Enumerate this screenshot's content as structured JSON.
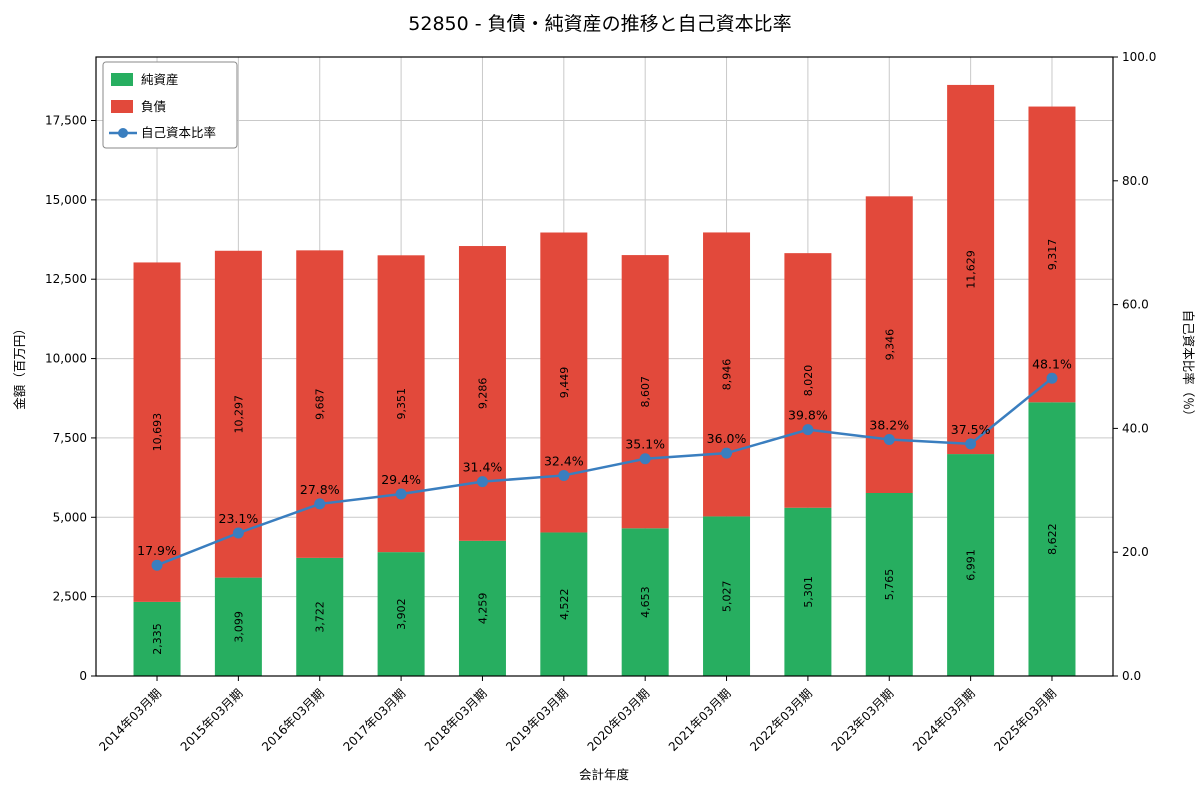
{
  "chart_data": {
    "type": "stacked-bar-line",
    "title": "52850 - 負債・純資産の推移と自己資本比率",
    "xlabel": "会計年度",
    "ylabel_left": "金額（百万円）",
    "ylabel_right": "自己資本比率（％）",
    "categories": [
      "2014年03月期",
      "2015年03月期",
      "2016年03月期",
      "2017年03月期",
      "2018年03月期",
      "2019年03月期",
      "2020年03月期",
      "2021年03月期",
      "2022年03月期",
      "2023年03月期",
      "2024年03月期",
      "2025年03月期"
    ],
    "series": [
      {
        "name": "純資産",
        "color": "#27ae60",
        "values": [
          2335,
          3099,
          3722,
          3902,
          4259,
          4522,
          4653,
          5027,
          5301,
          5765,
          6991,
          8622
        ]
      },
      {
        "name": "負債",
        "color": "#e2493b",
        "values": [
          10693,
          10297,
          9687,
          9351,
          9286,
          9449,
          8607,
          8946,
          8020,
          9346,
          11629,
          9317
        ]
      }
    ],
    "line_series": {
      "name": "自己資本比率",
      "color": "#3a7ebf",
      "unit": "%",
      "values": [
        17.9,
        23.1,
        27.8,
        29.4,
        31.4,
        32.4,
        35.1,
        36.0,
        39.8,
        38.2,
        37.5,
        48.1
      ]
    },
    "ylim_left": [
      0,
      19500
    ],
    "yticks_left": [
      0,
      2500,
      5000,
      7500,
      10000,
      12500,
      15000,
      17500
    ],
    "ylim_right": [
      0,
      100
    ],
    "yticks_right": [
      0,
      20,
      40,
      60,
      80,
      100
    ],
    "grid": true,
    "legend_position": "upper-left",
    "grid_color": "#c9c9c9",
    "axis_color": "#000000"
  }
}
